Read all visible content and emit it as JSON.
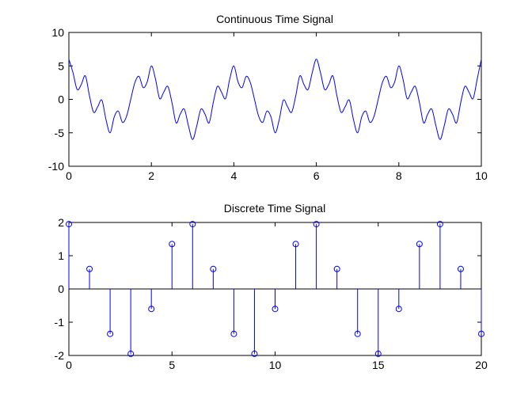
{
  "figure": {
    "background": "#ffffff"
  },
  "chart_data": [
    {
      "type": "line",
      "title": "Continuous Time Signal",
      "xlabel": "",
      "ylabel": "",
      "xlim": [
        0,
        10
      ],
      "ylim": [
        -10,
        10
      ],
      "xticks": [
        0,
        2,
        4,
        6,
        8,
        10
      ],
      "yticks": [
        -10,
        -5,
        0,
        5,
        10
      ],
      "xtick_labels": [
        "0",
        "2",
        "4",
        "6",
        "8",
        "10"
      ],
      "ytick_labels": [
        "-10",
        "-5",
        "0",
        "5",
        "10"
      ],
      "grid": false,
      "color": "#0000ff",
      "series": [
        {
          "x": [
            0,
            0.1,
            0.2,
            0.3,
            0.4,
            0.5,
            0.6,
            0.7,
            0.8,
            0.9,
            1,
            1.1,
            1.2,
            1.3,
            1.4,
            1.5,
            1.6,
            1.7,
            1.8,
            1.9,
            2,
            2.1,
            2.2,
            2.3,
            2.4,
            2.5,
            2.6,
            2.7,
            2.8,
            2.9,
            3,
            3.1,
            3.2,
            3.3,
            3.4,
            3.5,
            3.6,
            3.7,
            3.8,
            3.9,
            4,
            4.1,
            4.2,
            4.3,
            4.4,
            4.5,
            4.6,
            4.7,
            4.8,
            4.9,
            5,
            5.1,
            5.2,
            5.3,
            5.4,
            5.5,
            5.6,
            5.7,
            5.8,
            5.9,
            6,
            6.1,
            6.2,
            6.3,
            6.4,
            6.5,
            6.6,
            6.7,
            6.8,
            6.9,
            7,
            7.1,
            7.2,
            7.3,
            7.4,
            7.5,
            7.6,
            7.7,
            7.8,
            7.9,
            8,
            8.1,
            8.2,
            8.3,
            8.4,
            8.5,
            8.6,
            8.7,
            8.8,
            8.9,
            9,
            9.1,
            9.2,
            9.3,
            9.4,
            9.5,
            9.6,
            9.7,
            9.8,
            9.9,
            10
          ],
          "y": [
            6.0,
            3.98,
            1.48,
            2.21,
            3.51,
            0.5,
            -1.93,
            -1.08,
            -0.12,
            -3.03,
            -5.0,
            -2.63,
            -1.76,
            -3.44,
            -2.5,
            0.0,
            2.5,
            3.44,
            1.76,
            2.63,
            5.0,
            3.03,
            0.12,
            1.08,
            1.93,
            -0.5,
            -3.51,
            -2.21,
            -1.48,
            -3.98,
            -6.0,
            -3.98,
            -1.48,
            -2.21,
            -3.51,
            -0.5,
            1.93,
            1.08,
            0.12,
            3.03,
            5.0,
            2.63,
            1.76,
            3.44,
            2.5,
            0.0,
            -2.5,
            -3.44,
            -1.76,
            -2.63,
            -5.0,
            -3.03,
            -0.12,
            -1.08,
            -1.93,
            0.5,
            3.51,
            2.21,
            1.48,
            3.98,
            6.0,
            3.98,
            1.48,
            2.21,
            3.51,
            0.5,
            -1.93,
            -1.08,
            -0.12,
            -3.03,
            -5.0,
            -2.63,
            -1.76,
            -3.44,
            -2.5,
            0.0,
            2.5,
            3.44,
            1.76,
            2.63,
            5.0,
            3.03,
            0.12,
            1.08,
            1.93,
            -0.5,
            -3.51,
            -2.21,
            -1.48,
            -3.98,
            -6.0,
            -3.98,
            -1.48,
            -2.21,
            -3.51,
            -0.5,
            1.93,
            1.08,
            0.12,
            3.03,
            6.0
          ]
        }
      ]
    },
    {
      "type": "stem",
      "title": "Discrete Time Signal",
      "xlabel": "",
      "ylabel": "",
      "xlim": [
        0,
        20
      ],
      "ylim": [
        -2,
        2
      ],
      "xticks": [
        0,
        5,
        10,
        15,
        20
      ],
      "yticks": [
        -2,
        -1,
        0,
        1,
        2
      ],
      "xtick_labels": [
        "0",
        "5",
        "10",
        "15",
        "20"
      ],
      "ytick_labels": [
        "-2",
        "-1",
        "0",
        "1",
        "2"
      ],
      "grid": false,
      "color": "#0000ff",
      "marker": "circle",
      "series": [
        {
          "x": [
            0,
            1,
            2,
            3,
            4,
            5,
            6,
            7,
            8,
            9,
            10,
            11,
            12,
            13,
            14,
            15,
            16,
            17,
            18,
            19,
            20
          ],
          "y": [
            1.95,
            0.6,
            -1.35,
            -1.95,
            -0.6,
            1.35,
            1.95,
            0.6,
            -1.35,
            -1.95,
            -0.6,
            1.35,
            1.95,
            0.6,
            -1.35,
            -1.95,
            -0.6,
            1.35,
            1.95,
            0.6,
            -1.35
          ]
        }
      ]
    }
  ]
}
